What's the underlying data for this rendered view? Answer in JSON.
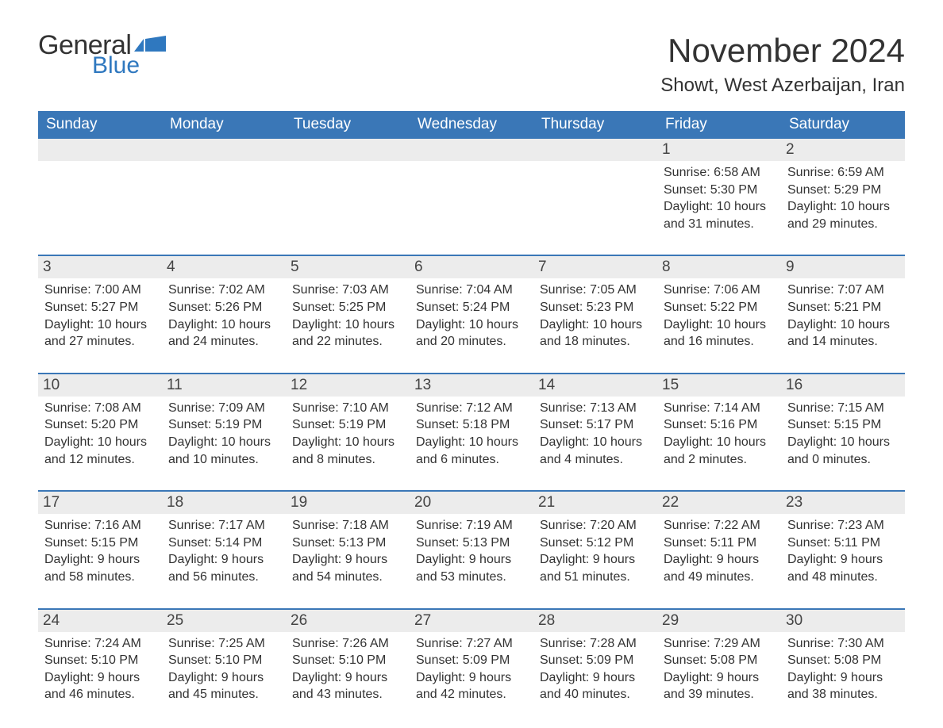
{
  "logo": {
    "general": "General",
    "blue": "Blue"
  },
  "title": "November 2024",
  "location": "Showt, West Azerbaijan, Iran",
  "colors": {
    "header_bg": "#3a77b7",
    "header_text": "#ffffff",
    "daynum_bg": "#ececec",
    "border": "#3a77b7",
    "text": "#333333",
    "logo_blue": "#2f78bf"
  },
  "days_of_week": [
    "Sunday",
    "Monday",
    "Tuesday",
    "Wednesday",
    "Thursday",
    "Friday",
    "Saturday"
  ],
  "weeks": [
    [
      {
        "n": "",
        "sunrise": "",
        "sunset": "",
        "daylight": ""
      },
      {
        "n": "",
        "sunrise": "",
        "sunset": "",
        "daylight": ""
      },
      {
        "n": "",
        "sunrise": "",
        "sunset": "",
        "daylight": ""
      },
      {
        "n": "",
        "sunrise": "",
        "sunset": "",
        "daylight": ""
      },
      {
        "n": "",
        "sunrise": "",
        "sunset": "",
        "daylight": ""
      },
      {
        "n": "1",
        "sunrise": "Sunrise: 6:58 AM",
        "sunset": "Sunset: 5:30 PM",
        "daylight": "Daylight: 10 hours and 31 minutes."
      },
      {
        "n": "2",
        "sunrise": "Sunrise: 6:59 AM",
        "sunset": "Sunset: 5:29 PM",
        "daylight": "Daylight: 10 hours and 29 minutes."
      }
    ],
    [
      {
        "n": "3",
        "sunrise": "Sunrise: 7:00 AM",
        "sunset": "Sunset: 5:27 PM",
        "daylight": "Daylight: 10 hours and 27 minutes."
      },
      {
        "n": "4",
        "sunrise": "Sunrise: 7:02 AM",
        "sunset": "Sunset: 5:26 PM",
        "daylight": "Daylight: 10 hours and 24 minutes."
      },
      {
        "n": "5",
        "sunrise": "Sunrise: 7:03 AM",
        "sunset": "Sunset: 5:25 PM",
        "daylight": "Daylight: 10 hours and 22 minutes."
      },
      {
        "n": "6",
        "sunrise": "Sunrise: 7:04 AM",
        "sunset": "Sunset: 5:24 PM",
        "daylight": "Daylight: 10 hours and 20 minutes."
      },
      {
        "n": "7",
        "sunrise": "Sunrise: 7:05 AM",
        "sunset": "Sunset: 5:23 PM",
        "daylight": "Daylight: 10 hours and 18 minutes."
      },
      {
        "n": "8",
        "sunrise": "Sunrise: 7:06 AM",
        "sunset": "Sunset: 5:22 PM",
        "daylight": "Daylight: 10 hours and 16 minutes."
      },
      {
        "n": "9",
        "sunrise": "Sunrise: 7:07 AM",
        "sunset": "Sunset: 5:21 PM",
        "daylight": "Daylight: 10 hours and 14 minutes."
      }
    ],
    [
      {
        "n": "10",
        "sunrise": "Sunrise: 7:08 AM",
        "sunset": "Sunset: 5:20 PM",
        "daylight": "Daylight: 10 hours and 12 minutes."
      },
      {
        "n": "11",
        "sunrise": "Sunrise: 7:09 AM",
        "sunset": "Sunset: 5:19 PM",
        "daylight": "Daylight: 10 hours and 10 minutes."
      },
      {
        "n": "12",
        "sunrise": "Sunrise: 7:10 AM",
        "sunset": "Sunset: 5:19 PM",
        "daylight": "Daylight: 10 hours and 8 minutes."
      },
      {
        "n": "13",
        "sunrise": "Sunrise: 7:12 AM",
        "sunset": "Sunset: 5:18 PM",
        "daylight": "Daylight: 10 hours and 6 minutes."
      },
      {
        "n": "14",
        "sunrise": "Sunrise: 7:13 AM",
        "sunset": "Sunset: 5:17 PM",
        "daylight": "Daylight: 10 hours and 4 minutes."
      },
      {
        "n": "15",
        "sunrise": "Sunrise: 7:14 AM",
        "sunset": "Sunset: 5:16 PM",
        "daylight": "Daylight: 10 hours and 2 minutes."
      },
      {
        "n": "16",
        "sunrise": "Sunrise: 7:15 AM",
        "sunset": "Sunset: 5:15 PM",
        "daylight": "Daylight: 10 hours and 0 minutes."
      }
    ],
    [
      {
        "n": "17",
        "sunrise": "Sunrise: 7:16 AM",
        "sunset": "Sunset: 5:15 PM",
        "daylight": "Daylight: 9 hours and 58 minutes."
      },
      {
        "n": "18",
        "sunrise": "Sunrise: 7:17 AM",
        "sunset": "Sunset: 5:14 PM",
        "daylight": "Daylight: 9 hours and 56 minutes."
      },
      {
        "n": "19",
        "sunrise": "Sunrise: 7:18 AM",
        "sunset": "Sunset: 5:13 PM",
        "daylight": "Daylight: 9 hours and 54 minutes."
      },
      {
        "n": "20",
        "sunrise": "Sunrise: 7:19 AM",
        "sunset": "Sunset: 5:13 PM",
        "daylight": "Daylight: 9 hours and 53 minutes."
      },
      {
        "n": "21",
        "sunrise": "Sunrise: 7:20 AM",
        "sunset": "Sunset: 5:12 PM",
        "daylight": "Daylight: 9 hours and 51 minutes."
      },
      {
        "n": "22",
        "sunrise": "Sunrise: 7:22 AM",
        "sunset": "Sunset: 5:11 PM",
        "daylight": "Daylight: 9 hours and 49 minutes."
      },
      {
        "n": "23",
        "sunrise": "Sunrise: 7:23 AM",
        "sunset": "Sunset: 5:11 PM",
        "daylight": "Daylight: 9 hours and 48 minutes."
      }
    ],
    [
      {
        "n": "24",
        "sunrise": "Sunrise: 7:24 AM",
        "sunset": "Sunset: 5:10 PM",
        "daylight": "Daylight: 9 hours and 46 minutes."
      },
      {
        "n": "25",
        "sunrise": "Sunrise: 7:25 AM",
        "sunset": "Sunset: 5:10 PM",
        "daylight": "Daylight: 9 hours and 45 minutes."
      },
      {
        "n": "26",
        "sunrise": "Sunrise: 7:26 AM",
        "sunset": "Sunset: 5:10 PM",
        "daylight": "Daylight: 9 hours and 43 minutes."
      },
      {
        "n": "27",
        "sunrise": "Sunrise: 7:27 AM",
        "sunset": "Sunset: 5:09 PM",
        "daylight": "Daylight: 9 hours and 42 minutes."
      },
      {
        "n": "28",
        "sunrise": "Sunrise: 7:28 AM",
        "sunset": "Sunset: 5:09 PM",
        "daylight": "Daylight: 9 hours and 40 minutes."
      },
      {
        "n": "29",
        "sunrise": "Sunrise: 7:29 AM",
        "sunset": "Sunset: 5:08 PM",
        "daylight": "Daylight: 9 hours and 39 minutes."
      },
      {
        "n": "30",
        "sunrise": "Sunrise: 7:30 AM",
        "sunset": "Sunset: 5:08 PM",
        "daylight": "Daylight: 9 hours and 38 minutes."
      }
    ]
  ]
}
